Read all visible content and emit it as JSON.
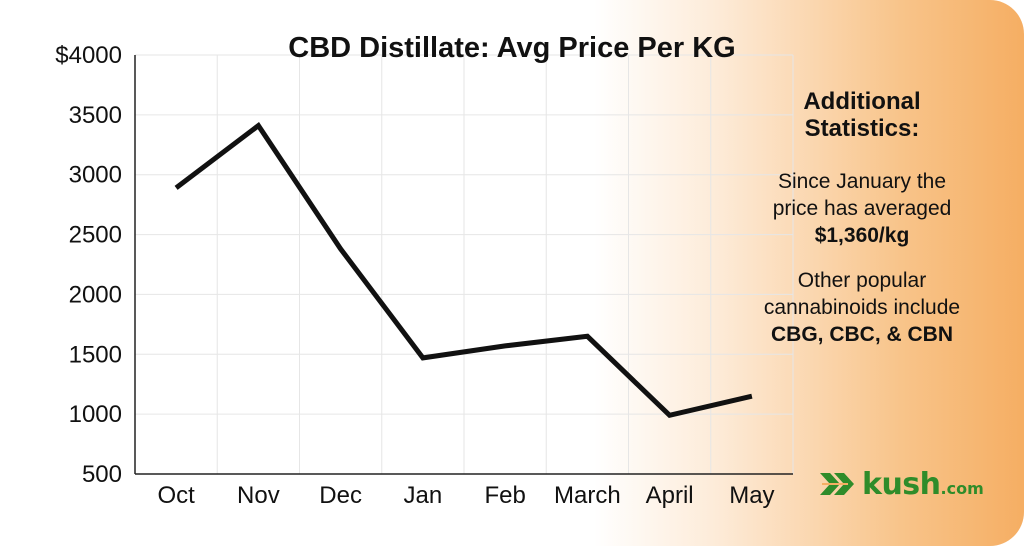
{
  "chart_data": {
    "type": "line",
    "title": "CBD Distillate: Avg Price Per KG",
    "categories": [
      "Oct",
      "Nov",
      "Dec",
      "Jan",
      "Feb",
      "March",
      "April",
      "May"
    ],
    "values": [
      2890,
      3410,
      2380,
      1470,
      1570,
      1650,
      990,
      1150
    ],
    "ylim": [
      500,
      4000
    ],
    "yticks": [
      "$4000",
      "3500",
      "3000",
      "2500",
      "2000",
      "1500",
      "1000",
      "500"
    ],
    "ytick_values": [
      4000,
      3500,
      3000,
      2500,
      2000,
      1500,
      1000,
      500
    ],
    "xlabel": "",
    "ylabel": "",
    "grid": true,
    "line_color": "#111111"
  },
  "stats": {
    "title_line1": "Additional",
    "title_line2": "Statistics:",
    "p1_line1": "Since January the",
    "p1_line2": "price has averaged",
    "p1_bold": "$1,360/kg",
    "p2_line1": "Other popular",
    "p2_line2": "cannabinoids include",
    "p2_bold": "CBG, CBC, & CBN"
  },
  "logo": {
    "word": "kush",
    "domain": ".com",
    "icon": "double-chevron-icon",
    "color": "#2f8c2a"
  }
}
